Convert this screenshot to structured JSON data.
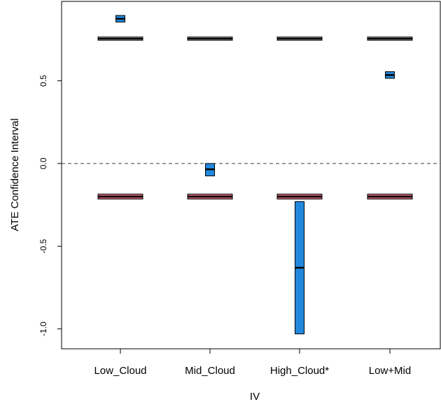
{
  "chart_data": {
    "type": "boxplot",
    "xlabel": "IV",
    "ylabel": "ATE Confidence Interval",
    "ylim": [
      -1.12,
      0.98
    ],
    "yticks": [
      -1.0,
      -0.5,
      0.0,
      0.5
    ],
    "ytick_labels": [
      "-1.0",
      "-0.5",
      "0.0",
      "0.5"
    ],
    "reference_line": {
      "y": 0,
      "style": "dashed"
    },
    "grid": false,
    "categories": [
      "Low_Cloud",
      "Mid_Cloud",
      "High_Cloud*",
      "Low+Mid"
    ],
    "series": [
      {
        "color": "#2288dd",
        "width": "narrow",
        "boxes": [
          {
            "low": 0.855,
            "mid": 0.875,
            "high": 0.895
          },
          {
            "low": -0.075,
            "mid": -0.035,
            "high": 0.0
          },
          {
            "low": -1.03,
            "mid": -0.63,
            "high": -0.23
          },
          {
            "low": 0.515,
            "mid": 0.535,
            "high": 0.555
          }
        ]
      },
      {
        "color": "#cc6677",
        "width": "wide",
        "boxes": [
          {
            "low": -0.215,
            "mid": -0.2,
            "high": -0.185
          },
          {
            "low": -0.215,
            "mid": -0.2,
            "high": -0.185
          },
          {
            "low": -0.215,
            "mid": -0.2,
            "high": -0.185
          },
          {
            "low": -0.215,
            "mid": -0.2,
            "high": -0.185
          }
        ]
      },
      {
        "color": "#b8b8b8",
        "width": "wide",
        "boxes": [
          {
            "low": 0.745,
            "mid": 0.755,
            "high": 0.765
          },
          {
            "low": 0.745,
            "mid": 0.755,
            "high": 0.765
          },
          {
            "low": 0.745,
            "mid": 0.755,
            "high": 0.765
          },
          {
            "low": 0.745,
            "mid": 0.755,
            "high": 0.765
          }
        ]
      }
    ]
  }
}
